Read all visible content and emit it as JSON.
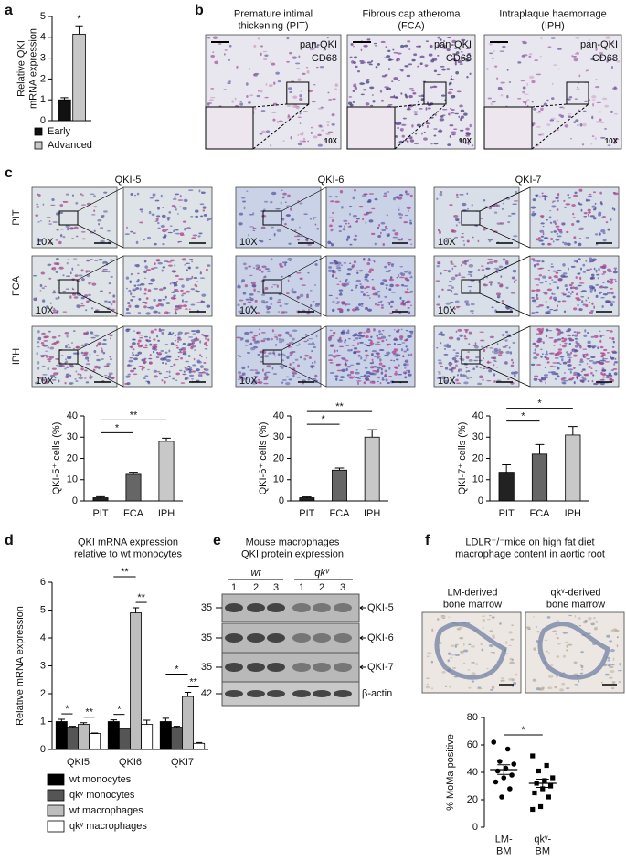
{
  "labels": [
    "a",
    "b",
    "c",
    "d",
    "e",
    "f"
  ],
  "panel_b": {
    "images": [
      {
        "title": "Premature intimal\nthickening (PIT)",
        "stains": [
          "pan-QKI",
          "CD68"
        ],
        "magnification": "10X"
      },
      {
        "title": "Fibrous cap atheroma\n(FCA)",
        "stains": [
          "pan-QKI",
          "CD68"
        ],
        "magnification": "10X"
      },
      {
        "title": "Intraplaque haemorrage\n(IPH)",
        "stains": [
          "pan-QKI",
          "CD68"
        ],
        "magnification": "10X"
      }
    ]
  },
  "panel_c": {
    "columns": [
      "QKI-5",
      "QKI-6",
      "QKI-7"
    ],
    "rows": [
      "PIT",
      "FCA",
      "IPH"
    ],
    "magnification": "10X"
  },
  "panel_e": {
    "title": "Mouse macrophages\nQKI protein expression",
    "groups": [
      "wt",
      "qkᵛ"
    ],
    "lanes": [
      "1",
      "2",
      "3",
      "1",
      "2",
      "3"
    ],
    "bands": [
      {
        "marker": "35",
        "label": "QKI-5"
      },
      {
        "marker": "35",
        "label": "QKI-6"
      },
      {
        "marker": "35",
        "label": "QKI-7"
      },
      {
        "marker": "42",
        "label": "β-actin"
      }
    ]
  },
  "panel_f": {
    "title": "LDLR⁻/⁻mice on high fat diet\nmacrophage content in aortic root",
    "images": [
      "LM-derived\nbone marrow",
      "qkᵛ-derived\nbone marrow"
    ]
  },
  "chart_data": [
    {
      "type": "bar",
      "ylabel": "Relative QKI\nmRNA expression",
      "categories": [
        null
      ],
      "series": [
        {
          "name": "Early",
          "color": "#111111",
          "values": [
            1.0
          ],
          "errors": [
            0.1
          ]
        },
        {
          "name": "Advanced",
          "color": "#c8c8c8",
          "values": [
            4.15
          ],
          "errors": [
            0.4
          ]
        }
      ],
      "ylim": [
        0,
        5
      ],
      "yticks": [
        0,
        1,
        2,
        3,
        4,
        5
      ],
      "legend": "bottom",
      "annotations": [
        {
          "label": "*",
          "series": "Advanced"
        }
      ]
    },
    {
      "type": "bar",
      "ylabel": "QKI-5⁺ cells (%)",
      "categories": [
        "PIT",
        "FCA",
        "IPH"
      ],
      "values": [
        1.5,
        12.5,
        28
      ],
      "errors": [
        0.5,
        1,
        1.5
      ],
      "colors": [
        "#222222",
        "#666666",
        "#c8c8c8"
      ],
      "ylim": [
        0,
        40
      ],
      "yticks": [
        0,
        10,
        20,
        30,
        40
      ],
      "annotations": [
        {
          "label": "*",
          "between": [
            "PIT",
            "FCA"
          ]
        },
        {
          "label": "**",
          "between": [
            "PIT",
            "IPH"
          ]
        }
      ]
    },
    {
      "type": "bar",
      "ylabel": "QKI-6⁺ cells (%)",
      "categories": [
        "PIT",
        "FCA",
        "IPH"
      ],
      "values": [
        1.5,
        14.5,
        30
      ],
      "errors": [
        0.4,
        1,
        3.5
      ],
      "colors": [
        "#222222",
        "#666666",
        "#c8c8c8"
      ],
      "ylim": [
        0,
        40
      ],
      "yticks": [
        0,
        10,
        20,
        30,
        40
      ],
      "annotations": [
        {
          "label": "*",
          "between": [
            "PIT",
            "FCA"
          ]
        },
        {
          "label": "**",
          "between": [
            "PIT",
            "IPH"
          ]
        }
      ]
    },
    {
      "type": "bar",
      "ylabel": "QKI-7⁺ cells (%)",
      "categories": [
        "PIT",
        "FCA",
        "IPH"
      ],
      "values": [
        13.5,
        22,
        31
      ],
      "errors": [
        3.5,
        4.5,
        4
      ],
      "colors": [
        "#222222",
        "#666666",
        "#c8c8c8"
      ],
      "ylim": [
        0,
        40
      ],
      "yticks": [
        0,
        10,
        20,
        30,
        40
      ],
      "annotations": [
        {
          "label": "*",
          "between": [
            "PIT",
            "FCA"
          ]
        },
        {
          "label": "*",
          "between": [
            "PIT",
            "IPH"
          ]
        }
      ]
    },
    {
      "type": "bar",
      "title": "QKI mRNA expression\nrelative to wt monocytes",
      "ylabel": "Relative mRNA expression",
      "categories": [
        "QKI5",
        "QKI6",
        "QKI7"
      ],
      "series": [
        {
          "name": "wt monocytes",
          "color": "#000000",
          "values": [
            1.0,
            1.0,
            1.0
          ],
          "errors": [
            0.08,
            0.06,
            0.12
          ]
        },
        {
          "name": "qkᵛ monocytes",
          "color": "#555555",
          "values": [
            0.8,
            0.75,
            0.8
          ],
          "errors": [
            0.03,
            0.02,
            0.03
          ]
        },
        {
          "name": "wt macrophages",
          "color": "#bdbdbd",
          "values": [
            0.9,
            4.9,
            1.9
          ],
          "errors": [
            0.06,
            0.18,
            0.15
          ]
        },
        {
          "name": "qkᵛ macrophages",
          "color": "#ffffff",
          "values": [
            0.57,
            0.9,
            0.22
          ],
          "errors": [
            0.02,
            0.15,
            0.03
          ]
        }
      ],
      "ylim": [
        0,
        6
      ],
      "yticks": [
        0,
        1,
        2,
        3,
        4,
        5,
        6
      ],
      "legend": "bottom",
      "annotations": [
        {
          "label": "*",
          "category": "QKI5",
          "between": [
            "wt monocytes",
            "qkᵛ monocytes"
          ]
        },
        {
          "label": "**",
          "category": "QKI5",
          "between": [
            "wt macrophages",
            "qkᵛ macrophages"
          ]
        },
        {
          "label": "*",
          "category": "QKI6",
          "between": [
            "wt monocytes",
            "qkᵛ monocytes"
          ]
        },
        {
          "label": "**",
          "category": "QKI6",
          "between": [
            "wt macrophages",
            "qkᵛ macrophages"
          ]
        },
        {
          "label": "**",
          "category": "QKI6",
          "between": [
            "wt monocytes",
            "wt macrophages"
          ]
        },
        {
          "label": "**",
          "category": "QKI7",
          "between": [
            "wt macrophages",
            "qkᵛ macrophages"
          ]
        },
        {
          "label": "*",
          "category": "QKI7",
          "between": [
            "wt monocytes",
            "wt macrophages"
          ]
        }
      ]
    },
    {
      "type": "strip",
      "ylabel": "% MoMa positive",
      "categories": [
        "LM-\nBM",
        "qkᵛ-\nBM"
      ],
      "values": [
        [
          62,
          57,
          48,
          46,
          43,
          41,
          38,
          36,
          33,
          28,
          22
        ],
        [
          52,
          45,
          41,
          36,
          34,
          32,
          30,
          28,
          25,
          22,
          15,
          13
        ]
      ],
      "means": [
        42,
        32
      ],
      "sems": [
        3.5,
        3
      ],
      "markers": [
        "circle",
        "square"
      ],
      "color": "#000000",
      "ylim": [
        0,
        80
      ],
      "yticks": [
        0,
        20,
        40,
        60,
        80
      ],
      "annotations": [
        {
          "label": "*",
          "between": [
            "LM-\nBM",
            "qkᵛ-\nBM"
          ]
        }
      ]
    }
  ]
}
